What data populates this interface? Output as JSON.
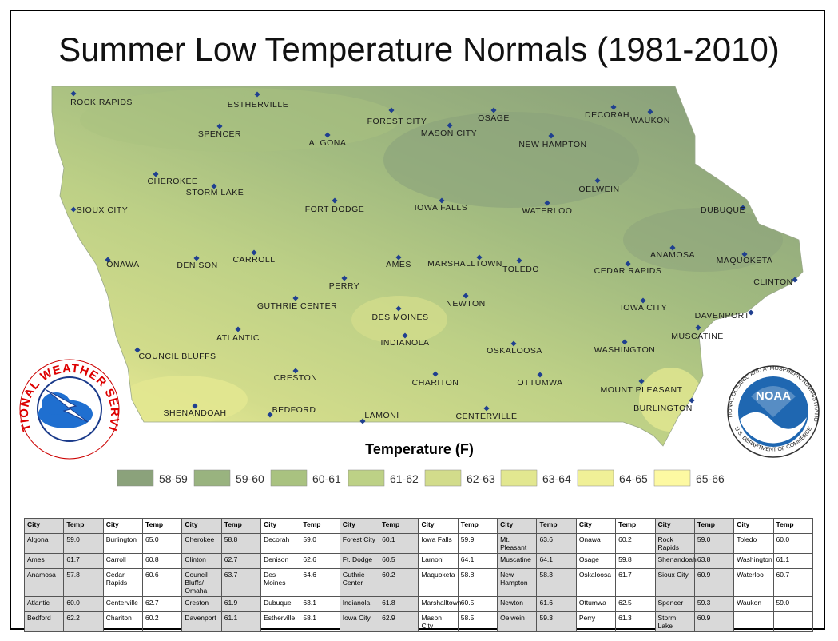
{
  "header": {
    "title": "Summer Low Temperature Normals (1981-2010)"
  },
  "map": {
    "cities": [
      "ROCK RAPIDS",
      "ESTHERVILLE",
      "SPENCER",
      "ALGONA",
      "FOREST CITY",
      "MASON CITY",
      "OSAGE",
      "DECORAH",
      "WAUKON",
      "NEW HAMPTON",
      "CHEROKEE",
      "STORM LAKE",
      "OELWEIN",
      "SIOUX CITY",
      "FORT DODGE",
      "IOWA FALLS",
      "WATERLOO",
      "DUBUQUE",
      "ONAWA",
      "DENISON",
      "CARROLL",
      "AMES",
      "MARSHALLTOWN",
      "TOLEDO",
      "CEDAR RAPIDS",
      "ANAMOSA",
      "MAQUOKETA",
      "CLINTON",
      "PERRY",
      "GUTHRIE CENTER",
      "NEWTON",
      "IOWA CITY",
      "DES MOINES",
      "DAVENPORT",
      "ATLANTIC",
      "INDIANOLA",
      "MUSCATINE",
      "OSKALOOSA",
      "WASHINGTON",
      "COUNCIL BLUFFS",
      "CRESTON",
      "CHARITON",
      "OTTUMWA",
      "MOUNT PLEASANT",
      "BURLINGTON",
      "SHENANDOAH",
      "BEDFORD",
      "LAMONI",
      "CENTERVILLE"
    ]
  },
  "logos": {
    "nws": "NATIONAL WEATHER SERVICE",
    "noaa": "NOAA",
    "noaa_ring": "NATIONAL OCEANIC AND ATMOSPHERIC ADMINISTRATION",
    "noaa_dept": "U.S. DEPARTMENT OF COMMERCE"
  },
  "legend": {
    "title": "Temperature (F)",
    "items": [
      {
        "label": "58-59",
        "color": "#8ba27b"
      },
      {
        "label": "59-60",
        "color": "#99b37f"
      },
      {
        "label": "60-61",
        "color": "#a9c280"
      },
      {
        "label": "61-62",
        "color": "#bdd186"
      },
      {
        "label": "62-63",
        "color": "#d2dc8b"
      },
      {
        "label": "63-64",
        "color": "#e2e790"
      },
      {
        "label": "64-65",
        "color": "#f0f097"
      },
      {
        "label": "65-66",
        "color": "#fdf9a2"
      }
    ]
  },
  "table": {
    "header": [
      "City",
      "Temp",
      "City",
      "Temp",
      "City",
      "Temp",
      "City",
      "Temp",
      "City",
      "Temp",
      "City",
      "Temp",
      "City",
      "Temp",
      "City",
      "Temp",
      "City",
      "Temp",
      "City",
      "Temp"
    ],
    "rows": [
      [
        "Algona",
        "59.0",
        "Burlington",
        "65.0",
        "Cherokee",
        "58.8",
        "Decorah",
        "59.0",
        "Forest City",
        "60.1",
        "Iowa Falls",
        "59.9",
        "Mt. Pleasant",
        "63.6",
        "Onawa",
        "60.2",
        "Rock Rapids",
        "59.0",
        "Toledo",
        "60.0"
      ],
      [
        "Ames",
        "61.7",
        "Carroll",
        "60.8",
        "Clinton",
        "62.7",
        "Denison",
        "62.6",
        "Ft. Dodge",
        "60.5",
        "Lamoni",
        "64.1",
        "Muscatine",
        "64.1",
        "Osage",
        "59.8",
        "Shenandoah",
        "63.8",
        "Washington",
        "61.1"
      ],
      [
        "Anamosa",
        "57.8",
        "Cedar Rapids",
        "60.6",
        "Council Bluffs/ Omaha",
        "63.7",
        "Des Moines",
        "64.6",
        "Guthrie Center",
        "60.2",
        "Maquoketa",
        "58.8",
        "New Hampton",
        "58.3",
        "Oskaloosa",
        "61.7",
        "Sioux City",
        "60.9",
        "Waterloo",
        "60.7"
      ],
      [
        "Atlantic",
        "60.0",
        "Centerville",
        "62.7",
        "Creston",
        "61.9",
        "Dubuque",
        "63.1",
        "Indianola",
        "61.8",
        "Marshalltown",
        "60.5",
        "Newton",
        "61.6",
        "Ottumwa",
        "62.5",
        "Spencer",
        "59.3",
        "Waukon",
        "59.0"
      ],
      [
        "Bedford",
        "62.2",
        "Chariton",
        "60.2",
        "Davenport",
        "61.1",
        "Estherville",
        "58.1",
        "Iowa City",
        "62.9",
        "Mason City",
        "58.5",
        "Oelwein",
        "59.3",
        "Perry",
        "61.3",
        "Storm Lake",
        "60.9"
      ]
    ]
  }
}
